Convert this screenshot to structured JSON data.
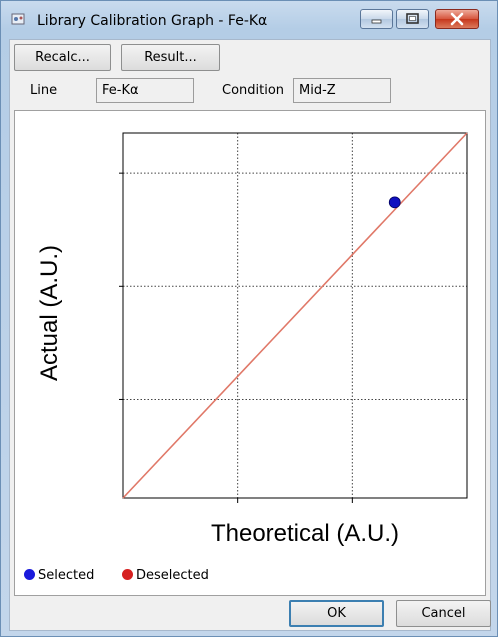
{
  "window": {
    "title": "Library Calibration Graph - Fe-Kα"
  },
  "toolbar": {
    "recalc_label": "Recalc...",
    "result_label": "Result..."
  },
  "fields": {
    "line_label": "Line",
    "line_value": "Fe-Kα",
    "condition_label": "Condition",
    "condition_value": "Mid-Z"
  },
  "chart_data": {
    "type": "scatter",
    "xlabel": "Theoretical (A.U.)",
    "ylabel": "Actual (A.U.)",
    "xlim": [
      0,
      1
    ],
    "ylim": [
      0,
      1
    ],
    "grid": true,
    "series": [
      {
        "name": "Selected",
        "color": "#1010c0",
        "x": [
          0.79
        ],
        "y": [
          0.81
        ]
      }
    ],
    "fit_line": {
      "x": [
        0,
        1
      ],
      "y": [
        0,
        1
      ],
      "color": "#e07868"
    }
  },
  "legend": {
    "selected_label": "Selected",
    "selected_color": "#1a1adc",
    "deselected_label": "Deselected",
    "deselected_color": "#d62020"
  },
  "buttons": {
    "ok_label": "OK",
    "cancel_label": "Cancel"
  }
}
